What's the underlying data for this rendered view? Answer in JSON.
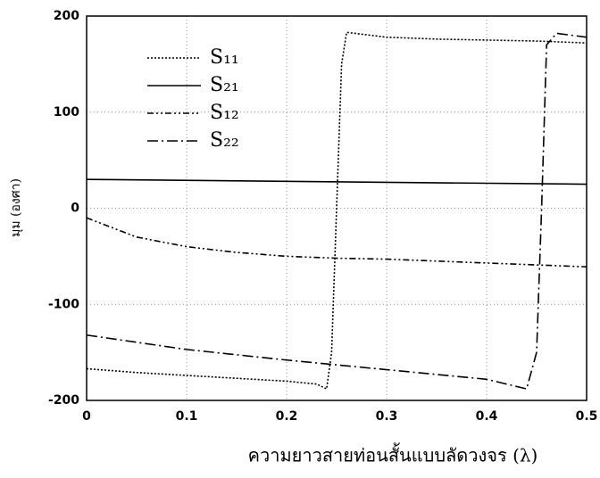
{
  "chart_data": {
    "type": "line",
    "xlabel": "ความยาวสายท่อนสั้นแบบลัดวงจร (λ)",
    "ylabel": "มุม (องศา)",
    "xlim": [
      0,
      0.5
    ],
    "ylim": [
      -200,
      200
    ],
    "xticks": [
      0,
      0.1,
      0.2,
      0.3,
      0.4,
      0.5
    ],
    "yticks": [
      -200,
      -100,
      0,
      100,
      200
    ],
    "grid": true,
    "legend": "upper left",
    "series": [
      {
        "name": "S₁₁",
        "color": "#000000",
        "dash": "2,2",
        "x": [
          0,
          0.05,
          0.1,
          0.15,
          0.2,
          0.23,
          0.24,
          0.245,
          0.25,
          0.255,
          0.26,
          0.3,
          0.35,
          0.4,
          0.45,
          0.5
        ],
        "values": [
          -167,
          -171,
          -174,
          -177,
          -180,
          -183,
          -188,
          -150,
          0,
          150,
          183,
          178,
          176,
          175,
          174,
          172
        ]
      },
      {
        "name": "S₂₁",
        "color": "#000000",
        "dash": "",
        "x": [
          0,
          0.5
        ],
        "values": [
          30,
          25
        ]
      },
      {
        "name": "S₁₂",
        "color": "#000000",
        "dash": "7,3,2,3,2,3",
        "x": [
          0,
          0.05,
          0.1,
          0.15,
          0.2,
          0.25,
          0.3,
          0.35,
          0.4,
          0.45,
          0.5
        ],
        "values": [
          -10,
          -30,
          -40,
          -46,
          -50,
          -52,
          -53,
          -55,
          -57,
          -59,
          -61
        ]
      },
      {
        "name": "S₂₂",
        "color": "#000000",
        "dash": "12,4,2,4",
        "x": [
          0,
          0.1,
          0.2,
          0.3,
          0.4,
          0.44,
          0.45,
          0.455,
          0.46,
          0.47,
          0.5
        ],
        "values": [
          -132,
          -147,
          -158,
          -168,
          -178,
          -188,
          -150,
          0,
          170,
          182,
          178
        ]
      }
    ]
  }
}
